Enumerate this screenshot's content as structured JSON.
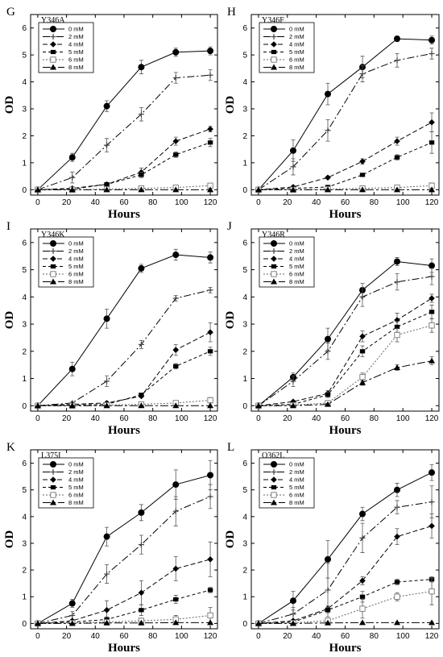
{
  "chart_data": [
    {
      "type": "line",
      "letter": "G",
      "variant": "Y346A",
      "xlabel": "Hours",
      "ylabel": "OD",
      "x": [
        0,
        24,
        48,
        72,
        96,
        120
      ],
      "xlim": [
        -5,
        125
      ],
      "ylim": [
        -0.2,
        6.5
      ],
      "xticks": [
        0,
        20,
        40,
        60,
        80,
        100,
        120
      ],
      "yticks": [
        0,
        1,
        2,
        3,
        4,
        5,
        6
      ],
      "series": [
        {
          "name": "0 mM",
          "values": [
            0,
            1.2,
            3.1,
            4.55,
            5.1,
            5.15
          ],
          "err": [
            0,
            0.15,
            0.2,
            0.25,
            0.15,
            0.15
          ]
        },
        {
          "name": "2 mM",
          "values": [
            0,
            0.45,
            1.65,
            2.8,
            4.15,
            4.25
          ],
          "err": [
            0,
            0.2,
            0.25,
            0.25,
            0.2,
            0.2
          ]
        },
        {
          "name": "4 mM",
          "values": [
            0,
            0.05,
            0.2,
            0.65,
            1.8,
            2.25
          ],
          "err": [
            0,
            0.05,
            0.05,
            0.15,
            0.15,
            0.1
          ]
        },
        {
          "name": "5 mM",
          "values": [
            0,
            0.02,
            0.2,
            0.55,
            1.3,
            1.75
          ],
          "err": [
            0,
            0.02,
            0.05,
            0.1,
            0.1,
            0.15
          ]
        },
        {
          "name": "6 mM",
          "values": [
            0,
            0,
            0.02,
            0.05,
            0.08,
            0.15
          ],
          "err": [
            0,
            0,
            0.02,
            0.03,
            0.03,
            0.05
          ]
        },
        {
          "name": "8 mM",
          "values": [
            0,
            0,
            0,
            0,
            0,
            0
          ],
          "err": [
            0,
            0,
            0,
            0,
            0,
            0
          ]
        }
      ]
    },
    {
      "type": "line",
      "letter": "H",
      "variant": "Y346F",
      "xlabel": "Hours",
      "ylabel": "OD",
      "x": [
        0,
        24,
        48,
        72,
        96,
        120
      ],
      "xlim": [
        -5,
        125
      ],
      "ylim": [
        -0.2,
        6.5
      ],
      "xticks": [
        0,
        20,
        40,
        60,
        80,
        100,
        120
      ],
      "yticks": [
        0,
        1,
        2,
        3,
        4,
        5,
        6
      ],
      "series": [
        {
          "name": "0 mM",
          "values": [
            0,
            1.45,
            3.55,
            4.55,
            5.6,
            5.55
          ],
          "err": [
            0,
            0.4,
            0.4,
            0.4,
            0.1,
            0.15
          ]
        },
        {
          "name": "2 mM",
          "values": [
            0,
            0.85,
            2.2,
            4.3,
            4.8,
            5.05
          ],
          "err": [
            0,
            0.3,
            0.4,
            0.3,
            0.25,
            0.2
          ]
        },
        {
          "name": "4 mM",
          "values": [
            0,
            0.1,
            0.45,
            1.05,
            1.8,
            2.5
          ],
          "err": [
            0,
            0.05,
            0.05,
            0.1,
            0.15,
            0.35
          ]
        },
        {
          "name": "5 mM",
          "values": [
            0,
            0.05,
            0.1,
            0.55,
            1.2,
            1.75
          ],
          "err": [
            0,
            0.03,
            0.03,
            0.05,
            0.1,
            0.4
          ]
        },
        {
          "name": "6 mM",
          "values": [
            0,
            0,
            0.02,
            0.05,
            0.08,
            0.15
          ],
          "err": [
            0,
            0,
            0.02,
            0.03,
            0.05,
            0.1
          ]
        },
        {
          "name": "8 mM",
          "values": [
            0,
            0,
            0,
            0,
            0,
            0
          ],
          "err": [
            0,
            0,
            0,
            0,
            0,
            0
          ]
        }
      ]
    },
    {
      "type": "line",
      "letter": "I",
      "variant": "Y346K",
      "xlabel": "Hours",
      "ylabel": "OD",
      "x": [
        0,
        24,
        48,
        72,
        96,
        120
      ],
      "xlim": [
        -5,
        125
      ],
      "ylim": [
        -0.2,
        6.5
      ],
      "xticks": [
        0,
        20,
        40,
        60,
        80,
        100,
        120
      ],
      "yticks": [
        0,
        1,
        2,
        3,
        4,
        5,
        6
      ],
      "series": [
        {
          "name": "0 mM",
          "values": [
            0,
            1.35,
            3.2,
            5.05,
            5.55,
            5.45
          ],
          "err": [
            0,
            0.25,
            0.35,
            0.15,
            0.2,
            0.2
          ]
        },
        {
          "name": "2 mM",
          "values": [
            0,
            0.1,
            0.9,
            2.25,
            3.95,
            4.25
          ],
          "err": [
            0,
            0.05,
            0.2,
            0.15,
            0.1,
            0.1
          ]
        },
        {
          "name": "4 mM",
          "values": [
            0,
            0.05,
            0.1,
            0.35,
            2.05,
            2.7
          ],
          "err": [
            0,
            0.03,
            0.05,
            0.05,
            0.2,
            0.35
          ]
        },
        {
          "name": "5 mM",
          "values": [
            0,
            0.02,
            0.05,
            0.4,
            1.45,
            2.0
          ],
          "err": [
            0,
            0.02,
            0.03,
            0.05,
            0.1,
            0.15
          ]
        },
        {
          "name": "6 mM",
          "values": [
            0,
            0,
            0.02,
            0.05,
            0.1,
            0.2
          ],
          "err": [
            0,
            0,
            0.02,
            0.03,
            0.05,
            0.1
          ]
        },
        {
          "name": "8 mM",
          "values": [
            0,
            0,
            0,
            0,
            0,
            0
          ],
          "err": [
            0,
            0,
            0,
            0,
            0,
            0
          ]
        }
      ]
    },
    {
      "type": "line",
      "letter": "J",
      "variant": "Y346R",
      "xlabel": "Hours",
      "ylabel": "OD",
      "x": [
        0,
        24,
        48,
        72,
        96,
        120
      ],
      "xlim": [
        -5,
        125
      ],
      "ylim": [
        -0.2,
        6.5
      ],
      "xticks": [
        0,
        20,
        40,
        60,
        80,
        100,
        120
      ],
      "yticks": [
        0,
        1,
        2,
        3,
        4,
        5,
        6
      ],
      "series": [
        {
          "name": "0 mM",
          "values": [
            0,
            1.05,
            2.45,
            4.25,
            5.3,
            5.15
          ],
          "err": [
            0,
            0.15,
            0.4,
            0.25,
            0.15,
            0.25
          ]
        },
        {
          "name": "2 mM",
          "values": [
            0,
            0.9,
            2.0,
            4.0,
            4.55,
            4.75
          ],
          "err": [
            0,
            0.2,
            0.3,
            0.35,
            0.3,
            0.3
          ]
        },
        {
          "name": "4 mM",
          "values": [
            0,
            0.15,
            0.45,
            2.55,
            3.15,
            3.95
          ],
          "err": [
            0,
            0.05,
            0.1,
            0.2,
            0.25,
            0.15
          ]
        },
        {
          "name": "5 mM",
          "values": [
            0,
            0.05,
            0.4,
            2.0,
            2.9,
            3.45
          ],
          "err": [
            0,
            0.03,
            0.1,
            0.2,
            0.2,
            0.25
          ]
        },
        {
          "name": "6 mM",
          "values": [
            0,
            0.02,
            0.1,
            1.05,
            2.6,
            2.95
          ],
          "err": [
            0,
            0.02,
            0.05,
            0.15,
            0.25,
            0.25
          ]
        },
        {
          "name": "8 mM",
          "values": [
            0,
            0,
            0.05,
            0.85,
            1.4,
            1.65
          ],
          "err": [
            0,
            0,
            0.03,
            0.1,
            0.1,
            0.15
          ]
        }
      ]
    },
    {
      "type": "line",
      "letter": "K",
      "variant": "L375I",
      "xlabel": "Hours",
      "ylabel": "OD",
      "x": [
        0,
        24,
        48,
        72,
        96,
        120
      ],
      "xlim": [
        -5,
        125
      ],
      "ylim": [
        -0.2,
        6.5
      ],
      "xticks": [
        0,
        20,
        40,
        60,
        80,
        100,
        120
      ],
      "yticks": [
        0,
        1,
        2,
        3,
        4,
        5,
        6
      ],
      "series": [
        {
          "name": "0 mM",
          "values": [
            0,
            0.75,
            3.25,
            4.15,
            5.2,
            5.55
          ],
          "err": [
            0,
            0.15,
            0.35,
            0.3,
            0.55,
            0.55
          ]
        },
        {
          "name": "2 mM",
          "values": [
            0,
            0.3,
            1.85,
            2.95,
            4.2,
            4.75
          ],
          "err": [
            0,
            0.15,
            0.35,
            0.35,
            0.55,
            0.45
          ]
        },
        {
          "name": "4 mM",
          "values": [
            0,
            0.1,
            0.5,
            1.15,
            2.05,
            2.4
          ],
          "err": [
            0,
            0.05,
            0.35,
            0.45,
            0.45,
            0.65
          ]
        },
        {
          "name": "5 mM",
          "values": [
            0,
            0.05,
            0.15,
            0.5,
            0.9,
            1.25
          ],
          "err": [
            0,
            0.03,
            0.1,
            0.2,
            0.15,
            0.1
          ]
        },
        {
          "name": "6 mM",
          "values": [
            0,
            0.02,
            0.05,
            0.1,
            0.15,
            0.3
          ],
          "err": [
            0,
            0.02,
            0.05,
            0.1,
            0.15,
            0.3
          ]
        },
        {
          "name": "8 mM",
          "values": [
            0,
            0,
            0.02,
            0.02,
            0.03,
            0.03
          ],
          "err": [
            0,
            0,
            0.02,
            0.02,
            0.02,
            0.02
          ]
        }
      ]
    },
    {
      "type": "line",
      "letter": "L",
      "variant": "Q362L",
      "xlabel": "Hours",
      "ylabel": "OD",
      "x": [
        0,
        24,
        48,
        72,
        96,
        120
      ],
      "xlim": [
        -5,
        125
      ],
      "ylim": [
        -0.2,
        6.5
      ],
      "xticks": [
        0,
        20,
        40,
        60,
        80,
        100,
        120
      ],
      "yticks": [
        0,
        1,
        2,
        3,
        4,
        5,
        6
      ],
      "series": [
        {
          "name": "0 mM",
          "values": [
            0,
            0.85,
            2.4,
            4.1,
            5.0,
            5.65
          ],
          "err": [
            0,
            0.35,
            0.7,
            0.25,
            0.25,
            0.3
          ]
        },
        {
          "name": "2 mM",
          "values": [
            0,
            0.35,
            1.25,
            3.2,
            4.35,
            4.55
          ],
          "err": [
            0,
            0.25,
            1.0,
            0.55,
            0.25,
            0.6
          ]
        },
        {
          "name": "4 mM",
          "values": [
            0,
            0.1,
            0.55,
            1.6,
            3.25,
            3.65
          ],
          "err": [
            0,
            0.05,
            0.1,
            0.15,
            0.3,
            0.45
          ]
        },
        {
          "name": "5 mM",
          "values": [
            0,
            0.05,
            0.5,
            1.0,
            1.55,
            1.65
          ],
          "err": [
            0,
            0.03,
            0.1,
            0.2,
            0.1,
            0.1
          ]
        },
        {
          "name": "6 mM",
          "values": [
            0,
            0.02,
            0.1,
            0.55,
            1.0,
            1.2
          ],
          "err": [
            0,
            0.02,
            0.05,
            0.35,
            0.15,
            0.5
          ]
        },
        {
          "name": "8 mM",
          "values": [
            0,
            0,
            0.02,
            0.03,
            0.03,
            0.03
          ],
          "err": [
            0,
            0,
            0.02,
            0.02,
            0.02,
            0.02
          ]
        }
      ]
    }
  ]
}
